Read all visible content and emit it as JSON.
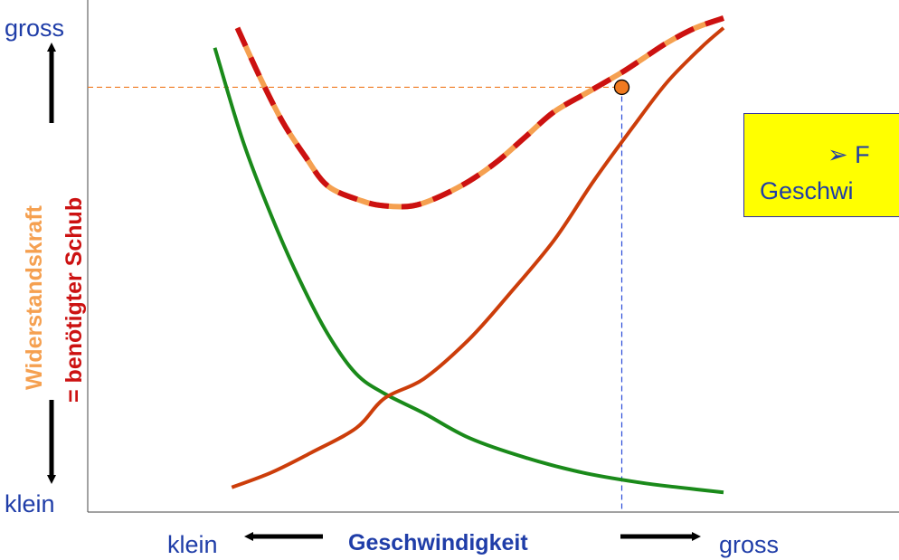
{
  "chart_data": {
    "type": "line",
    "xlabel": "Geschwindigkeit",
    "x_low_label": "klein",
    "x_high_label": "gross",
    "ylabel_line1": "Widerstandskraft",
    "ylabel_line2": "= benötigter Schub",
    "y_low_label": "klein",
    "y_high_label": "gross",
    "xlim": [
      0,
      100
    ],
    "ylim": [
      0,
      100
    ],
    "grid": false,
    "series": [
      {
        "color": "#1a8a1a",
        "points": [
          [
            10,
            94
          ],
          [
            15,
            75
          ],
          [
            20,
            60
          ],
          [
            25,
            47
          ],
          [
            30,
            36
          ],
          [
            35,
            28
          ],
          [
            40,
            24
          ],
          [
            47,
            20
          ],
          [
            55,
            15
          ],
          [
            65,
            11
          ],
          [
            75,
            8
          ],
          [
            85,
            6
          ],
          [
            92,
            5
          ],
          [
            100,
            4
          ]
        ]
      },
      {
        "color": "#cc3d0a",
        "points": [
          [
            13,
            5
          ],
          [
            20,
            8
          ],
          [
            27,
            12
          ],
          [
            35,
            17
          ],
          [
            40,
            23
          ],
          [
            47,
            27
          ],
          [
            55,
            35
          ],
          [
            62,
            44
          ],
          [
            70,
            55
          ],
          [
            77,
            67
          ],
          [
            84,
            78
          ],
          [
            90,
            87
          ],
          [
            96,
            94
          ],
          [
            100,
            98
          ]
        ]
      },
      {
        "color": "#cc1111",
        "dash_color": "#f5a050",
        "points": [
          [
            14,
            98
          ],
          [
            18,
            88
          ],
          [
            22,
            79
          ],
          [
            26,
            72
          ],
          [
            30,
            66
          ],
          [
            36,
            63
          ],
          [
            40,
            62
          ],
          [
            45,
            62
          ],
          [
            50,
            64
          ],
          [
            55,
            67
          ],
          [
            60,
            71
          ],
          [
            65,
            76
          ],
          [
            70,
            81
          ],
          [
            76,
            85
          ],
          [
            82,
            89
          ],
          [
            86,
            92
          ],
          [
            90,
            95
          ],
          [
            95,
            98
          ],
          [
            100,
            100
          ]
        ]
      }
    ],
    "marker": {
      "x": 82,
      "y": 86
    },
    "callout": {
      "line1": "➢ F",
      "line2": "Geschwi",
      "background": "#ffff00",
      "text_color": "#1f3da8"
    }
  }
}
